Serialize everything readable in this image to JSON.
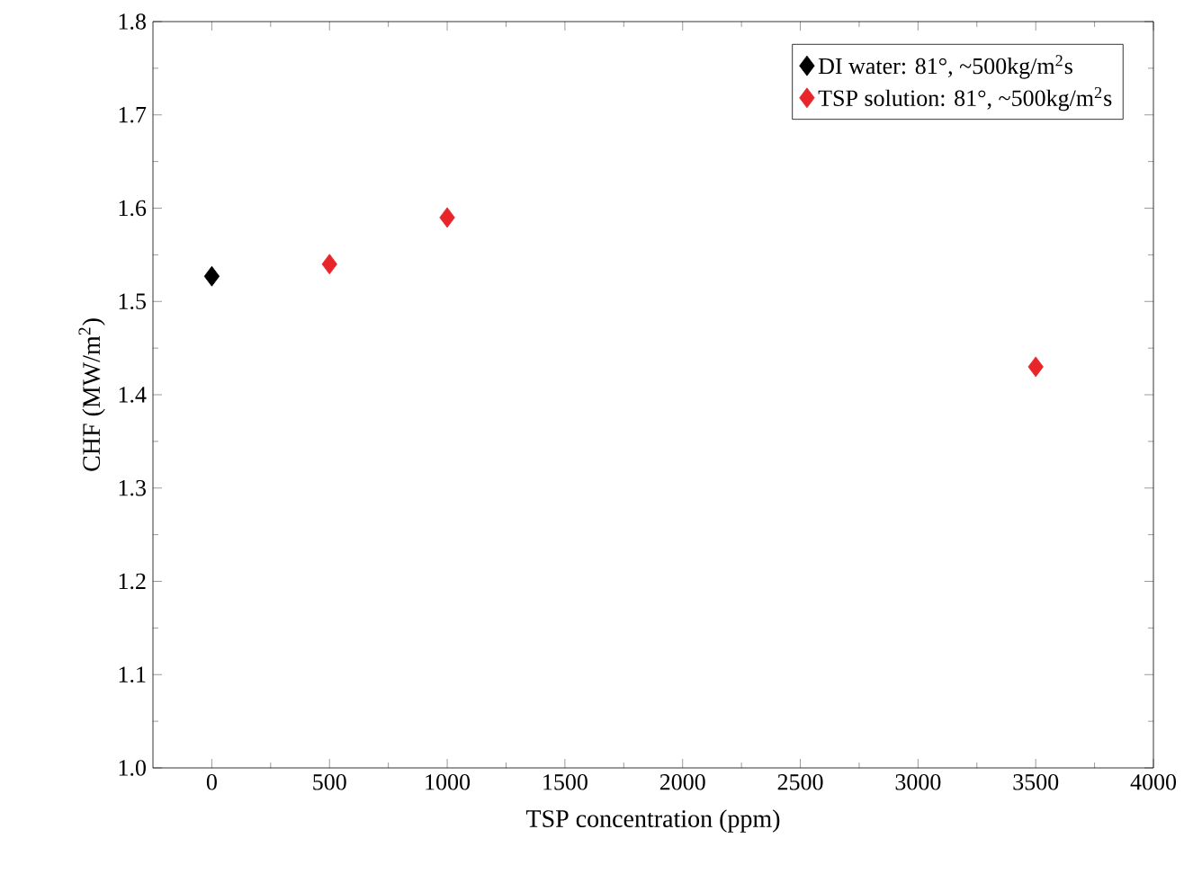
{
  "chart_data": {
    "type": "scatter",
    "xlabel": "TSP concentration (ppm)",
    "ylabel": "CHF (MW/m$^{2}$)",
    "series": [
      {
        "name": "DI water: 81°, ~500kg/m$^{2}$s",
        "color": "#000000",
        "x": [
          0
        ],
        "values": [
          1.527
        ]
      },
      {
        "name": "TSP solution: 81°, ~500kg/m$^{2}$s",
        "color": "#e8262a",
        "x": [
          500,
          1000,
          3500
        ],
        "values": [
          1.54,
          1.59,
          1.43
        ]
      }
    ],
    "xlim": [
      -250,
      4000
    ],
    "ylim": [
      1.0,
      1.8
    ],
    "xticks": [
      0,
      500,
      1000,
      1500,
      2000,
      2500,
      3000,
      3500,
      4000
    ],
    "yticks": [
      {
        "value": 1.0,
        "label": "1.0"
      },
      {
        "value": 1.1,
        "label": "1.1"
      },
      {
        "value": 1.2,
        "label": "1.2"
      },
      {
        "value": 1.3,
        "label": "1.3"
      },
      {
        "value": 1.4,
        "label": "1.4"
      },
      {
        "value": 1.5,
        "label": "1.5"
      },
      {
        "value": 1.6,
        "label": "1.6"
      },
      {
        "value": 1.7,
        "label": "1.7"
      },
      {
        "value": 1.8,
        "label": "1.8"
      }
    ],
    "grid": false,
    "legend": "top right",
    "marker": "diamond"
  }
}
